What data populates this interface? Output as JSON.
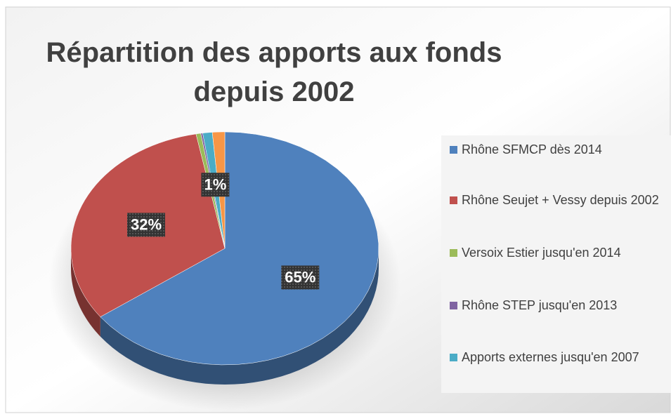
{
  "chart_data": {
    "type": "pie3d",
    "title": "Répartition des apports aux fonds depuis 2002",
    "categories": [
      "Rhône SFMCP dès 2014",
      "Rhône Seujet + Vessy depuis 2002",
      "Versoix Estier jusqu'en 2014",
      "Rhône STEP jusqu'en 2013",
      "Apports externes jusqu'en 2007",
      null
    ],
    "values": [
      65,
      32,
      0.5,
      0.2,
      1,
      1.3
    ],
    "value_labels": [
      "65%",
      "32%",
      null,
      null,
      "1%",
      null
    ],
    "colors": [
      "#4f81bd",
      "#c0504d",
      "#9bbb59",
      "#8064a2",
      "#4bacc6",
      "#f79646"
    ],
    "legend": "right"
  }
}
